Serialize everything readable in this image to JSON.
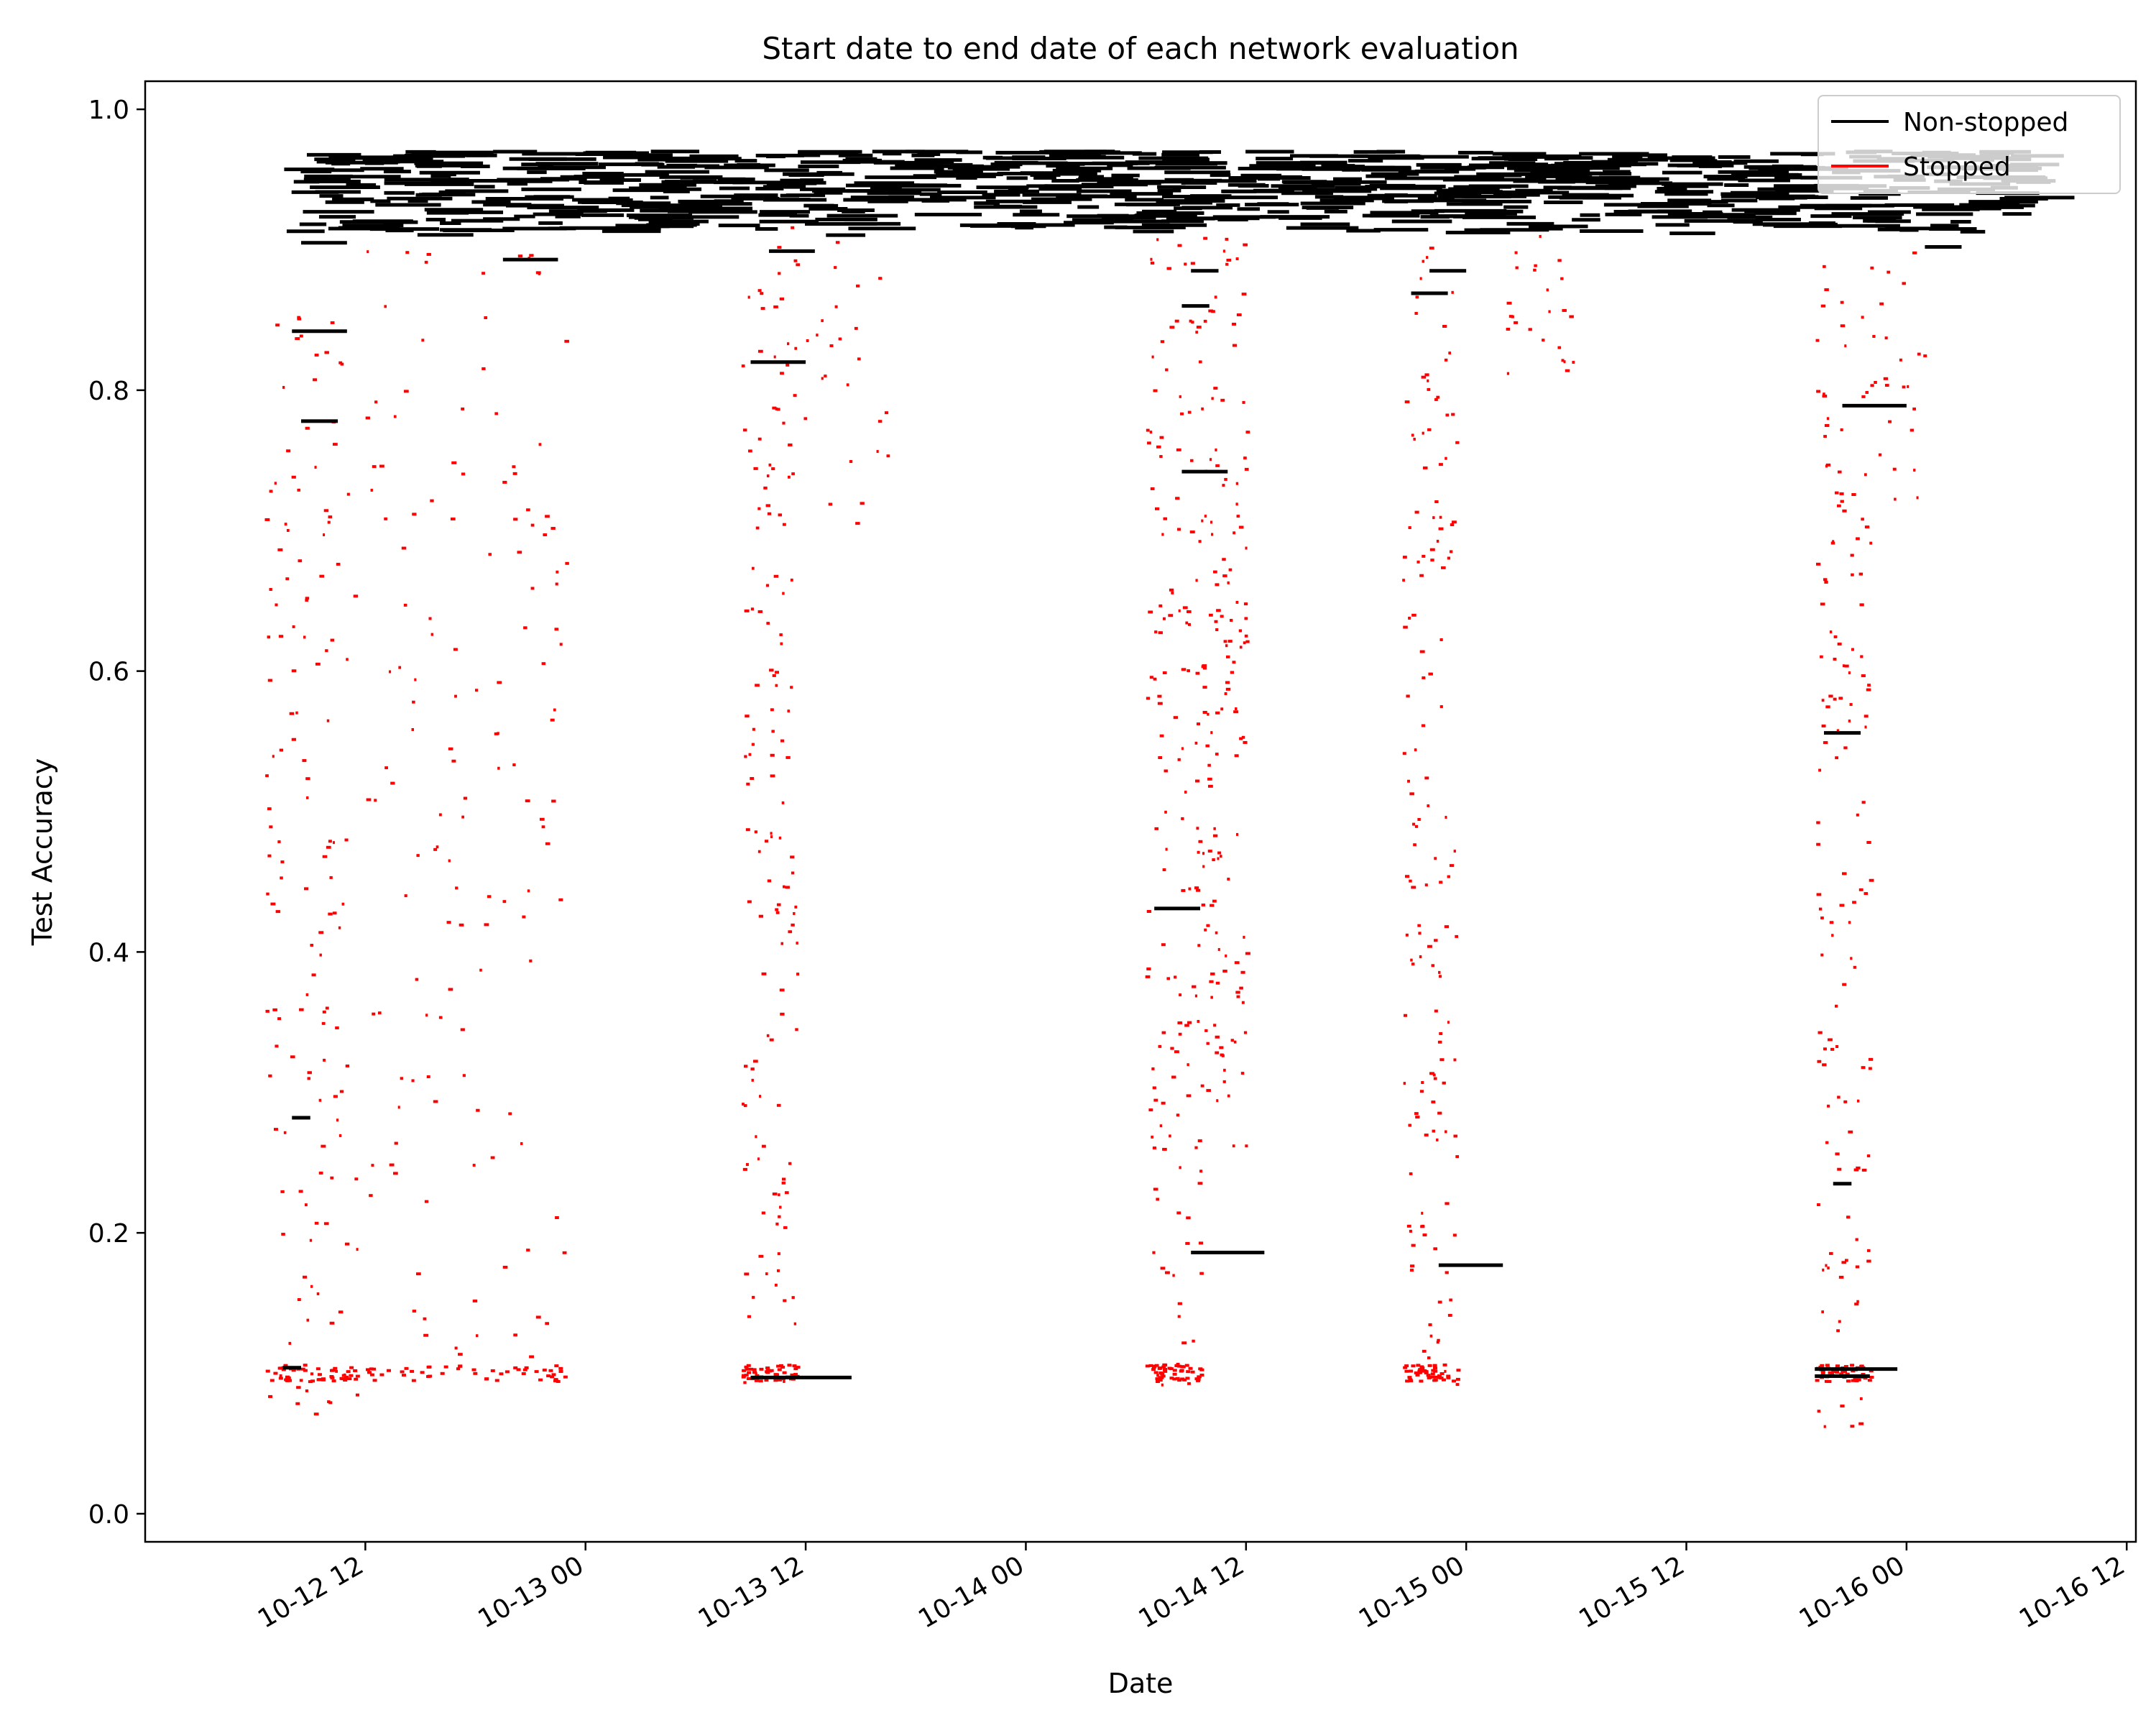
{
  "chart_data": {
    "type": "line",
    "title": "Start date to end date of each network evaluation",
    "xlabel": "Date",
    "ylabel": "Test Accuracy",
    "x_axis_type": "datetime",
    "xlim": [
      "2023-10-12 00:00",
      "2023-10-16 12:30"
    ],
    "ylim": [
      -0.02,
      1.02
    ],
    "x_ticks": [
      "2023-10-12 12:00",
      "2023-10-13 00:00",
      "2023-10-13 12:00",
      "2023-10-14 00:00",
      "2023-10-14 12:00",
      "2023-10-15 00:00",
      "2023-10-15 12:00",
      "2023-10-16 00:00",
      "2023-10-16 12:00"
    ],
    "x_tick_labels": [
      "10-12 12",
      "10-13 00",
      "10-13 12",
      "10-14 00",
      "10-14 12",
      "10-15 00",
      "10-15 12",
      "10-16 00",
      "10-16 12"
    ],
    "y_ticks": [
      0.0,
      0.2,
      0.4,
      0.6,
      0.8,
      1.0
    ],
    "y_tick_labels": [
      "0.0",
      "0.2",
      "0.4",
      "0.6",
      "0.8",
      "1.0"
    ],
    "grid": false,
    "legend": {
      "position": "top-right",
      "entries": [
        {
          "label": "Non-stopped",
          "color": "#000000"
        },
        {
          "label": "Stopped",
          "color": "#ff0000"
        }
      ]
    },
    "encoding": "each evaluation is a horizontal segment from start date to end date at its test accuracy",
    "series": [
      {
        "name": "Non-stopped",
        "color": "#000000",
        "segments": [
          {
            "start": "2023-10-12 08:00",
            "end": "2023-10-12 11:00",
            "y": 0.842
          },
          {
            "start": "2023-10-12 08:30",
            "end": "2023-10-12 10:30",
            "y": 0.778
          },
          {
            "start": "2023-10-12 08:00",
            "end": "2023-10-12 09:00",
            "y": 0.282
          },
          {
            "start": "2023-10-12 07:30",
            "end": "2023-10-12 08:30",
            "y": 0.104
          },
          {
            "start": "2023-10-12 08:30",
            "end": "2023-10-12 11:00",
            "y": 0.905
          },
          {
            "start": "2023-10-12 19:30",
            "end": "2023-10-12 22:30",
            "y": 0.893
          },
          {
            "start": "2023-10-13 09:00",
            "end": "2023-10-13 12:00",
            "y": 0.82
          },
          {
            "start": "2023-10-13 09:00",
            "end": "2023-10-13 14:30",
            "y": 0.097
          },
          {
            "start": "2023-10-13 10:00",
            "end": "2023-10-13 12:30",
            "y": 0.899
          },
          {
            "start": "2023-10-14 07:00",
            "end": "2023-10-14 09:30",
            "y": 0.431
          },
          {
            "start": "2023-10-14 08:30",
            "end": "2023-10-14 11:00",
            "y": 0.742
          },
          {
            "start": "2023-10-14 09:00",
            "end": "2023-10-14 13:00",
            "y": 0.186
          },
          {
            "start": "2023-10-14 08:30",
            "end": "2023-10-14 10:00",
            "y": 0.86
          },
          {
            "start": "2023-10-14 09:00",
            "end": "2023-10-14 10:30",
            "y": 0.885
          },
          {
            "start": "2023-10-14 22:30",
            "end": "2023-10-15 02:00",
            "y": 0.177
          },
          {
            "start": "2023-10-14 21:00",
            "end": "2023-10-14 23:00",
            "y": 0.869
          },
          {
            "start": "2023-10-14 22:00",
            "end": "2023-10-15 00:00",
            "y": 0.885
          },
          {
            "start": "2023-10-15 19:30",
            "end": "2023-10-15 21:30",
            "y": 0.556
          },
          {
            "start": "2023-10-15 20:30",
            "end": "2023-10-15 24:00",
            "y": 0.789
          },
          {
            "start": "2023-10-15 20:00",
            "end": "2023-10-15 21:00",
            "y": 0.235
          },
          {
            "start": "2023-10-15 19:00",
            "end": "2023-10-15 23:30",
            "y": 0.103
          },
          {
            "start": "2023-10-15 19:00",
            "end": "2023-10-15 22:00",
            "y": 0.098
          },
          {
            "start": "2023-10-16 01:00",
            "end": "2023-10-16 03:00",
            "y": 0.902
          }
        ]
      },
      {
        "name": "Stopped",
        "color": "#ff0000",
        "point_clusters": [
          {
            "x_range": [
              "2023-10-12 06:30",
              "2023-10-12 11:30"
            ],
            "y_range": [
              0.07,
              0.9
            ]
          },
          {
            "x_range": [
              "2023-10-12 12:00",
              "2023-10-12 23:00"
            ],
            "y_range": [
              0.1,
              0.9
            ]
          },
          {
            "x_range": [
              "2023-10-13 08:30",
              "2023-10-13 11:30"
            ],
            "y_range": [
              0.09,
              0.92
            ]
          },
          {
            "x_range": [
              "2023-10-13 11:30",
              "2023-10-13 16:30"
            ],
            "y_range": [
              0.7,
              0.91
            ]
          },
          {
            "x_range": [
              "2023-10-14 06:30",
              "2023-10-14 09:30"
            ],
            "y_range": [
              0.09,
              0.91
            ]
          },
          {
            "x_range": [
              "2023-10-14 09:30",
              "2023-10-14 12:00"
            ],
            "y_range": [
              0.26,
              0.91
            ]
          },
          {
            "x_range": [
              "2023-10-14 20:30",
              "2023-10-14 23:30"
            ],
            "y_range": [
              0.09,
              0.91
            ]
          },
          {
            "x_range": [
              "2023-10-15 02:00",
              "2023-10-15 06:00"
            ],
            "y_range": [
              0.81,
              0.91
            ]
          },
          {
            "x_range": [
              "2023-10-15 19:00",
              "2023-10-15 22:00"
            ],
            "y_range": [
              0.06,
              0.89
            ]
          },
          {
            "x_range": [
              "2023-10-15 22:00",
              "2023-10-16 01:00"
            ],
            "y_range": [
              0.72,
              0.91
            ]
          }
        ]
      }
    ],
    "dense_band": {
      "series": "Non-stopped",
      "y_range": [
        0.91,
        0.97
      ],
      "x_range": [
        "2023-10-12 07:30",
        "2023-10-16 06:00"
      ]
    }
  }
}
